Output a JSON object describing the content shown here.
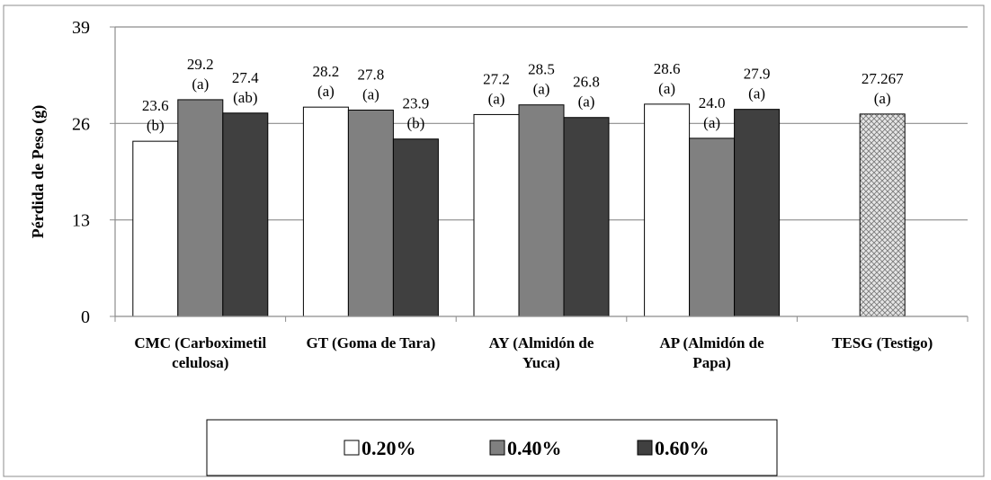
{
  "chart_data": {
    "type": "bar",
    "ylabel": "Pérdida de Peso (g)",
    "xlabel": "",
    "ylim": [
      0,
      39
    ],
    "yticks": [
      "0",
      "13",
      "26",
      "39"
    ],
    "grid": true,
    "legend_position": "bottom",
    "categories": [
      [
        "CMC (Carboximetil",
        "celulosa)"
      ],
      [
        "GT (Goma de Tara)"
      ],
      [
        "AY (Almidón de",
        "Yuca)"
      ],
      [
        "AP (Almidón de",
        "Papa)"
      ],
      [
        "TESG (Testigo)"
      ]
    ],
    "series": [
      {
        "name": "0.20%",
        "color": "#ffffff",
        "values": [
          23.6,
          28.2,
          27.2,
          28.6,
          null
        ],
        "value_labels": [
          "23.6",
          "28.2",
          "27.2",
          "28.6",
          ""
        ],
        "letters": [
          "(b)",
          "(a)",
          "(a)",
          "(a)",
          ""
        ]
      },
      {
        "name": "0.40%",
        "color": "#808080",
        "values": [
          29.2,
          27.8,
          28.5,
          24.0,
          null
        ],
        "value_labels": [
          "29.2",
          "27.8",
          "28.5",
          "24.0",
          ""
        ],
        "letters": [
          "(a)",
          "(a)",
          "(a)",
          "(a)",
          ""
        ]
      },
      {
        "name": "0.60%",
        "color": "#404040",
        "values": [
          27.4,
          23.9,
          26.8,
          27.9,
          null
        ],
        "value_labels": [
          "27.4",
          "23.9",
          "26.8",
          "27.9",
          ""
        ],
        "letters": [
          "(ab)",
          "(b)",
          "(a)",
          "(a)",
          ""
        ]
      }
    ],
    "control": {
      "category_index": 4,
      "value": 27.267,
      "value_label": "27.267",
      "letter": "(a)",
      "pattern": "crosshatch"
    }
  }
}
